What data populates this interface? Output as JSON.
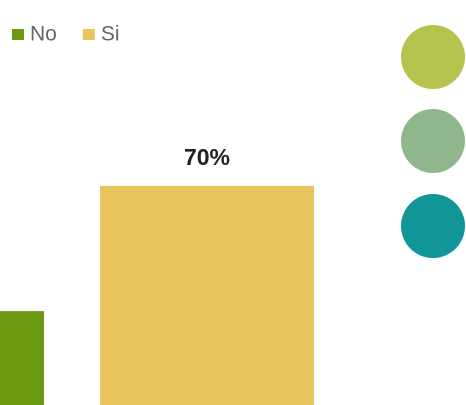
{
  "chart_data": {
    "type": "bar",
    "categories": [
      null
    ],
    "series": [
      {
        "name": "No",
        "color": "#6b9a12",
        "values": [
          30
        ],
        "value_labels": [
          null
        ]
      },
      {
        "name": "Si",
        "color": "#e8c55c",
        "values": [
          70
        ],
        "value_labels": [
          "70%"
        ]
      }
    ],
    "ylim": [
      0,
      100
    ]
  }
}
